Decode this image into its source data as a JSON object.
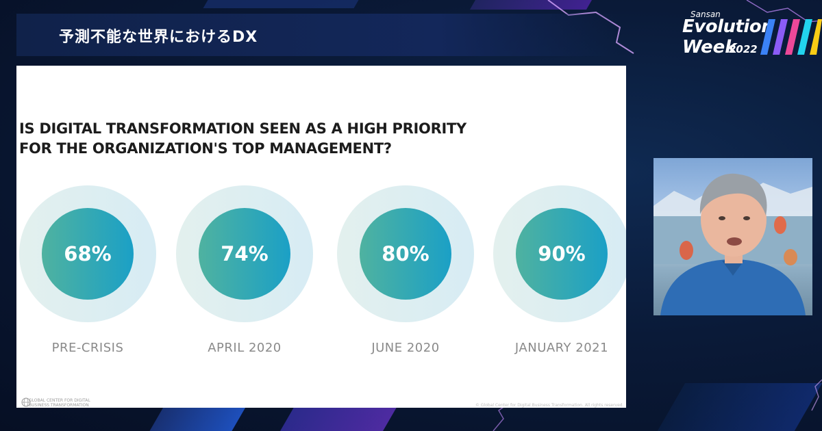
{
  "header": {
    "title": "予測不能な世界におけるDX"
  },
  "brand": {
    "sansan": "Sansan",
    "line1": "Evolution",
    "line2": "Week",
    "year": "2022"
  },
  "slide": {
    "question_line1": "IS DIGITAL TRANSFORMATION SEEN AS A HIGH PRIORITY",
    "question_line2": "FOR THE ORGANIZATION'S TOP MANAGEMENT?",
    "stats": [
      {
        "value": "68%",
        "fraction": 0.68,
        "label": "PRE-CRISIS"
      },
      {
        "value": "74%",
        "fraction": 0.74,
        "label": "APRIL 2020"
      },
      {
        "value": "80%",
        "fraction": 0.8,
        "label": "JUNE 2020"
      },
      {
        "value": "90%",
        "fraction": 0.9,
        "label": "JANUARY 2021"
      }
    ],
    "footer_org_line1": "GLOBAL CENTER FOR DIGITAL",
    "footer_org_line2": "BUSINESS TRANSFORMATION",
    "copyright": "© Global Center for Digital Business Transformation. All rights reserved."
  },
  "colors": {
    "disc_start": "#4fb2a0",
    "disc_end": "#1ba0c6",
    "ring": "#e0eff2",
    "background": "#0a1a38"
  },
  "icons": {
    "org_logo": "globe-icon",
    "speaker": "person-icon"
  }
}
